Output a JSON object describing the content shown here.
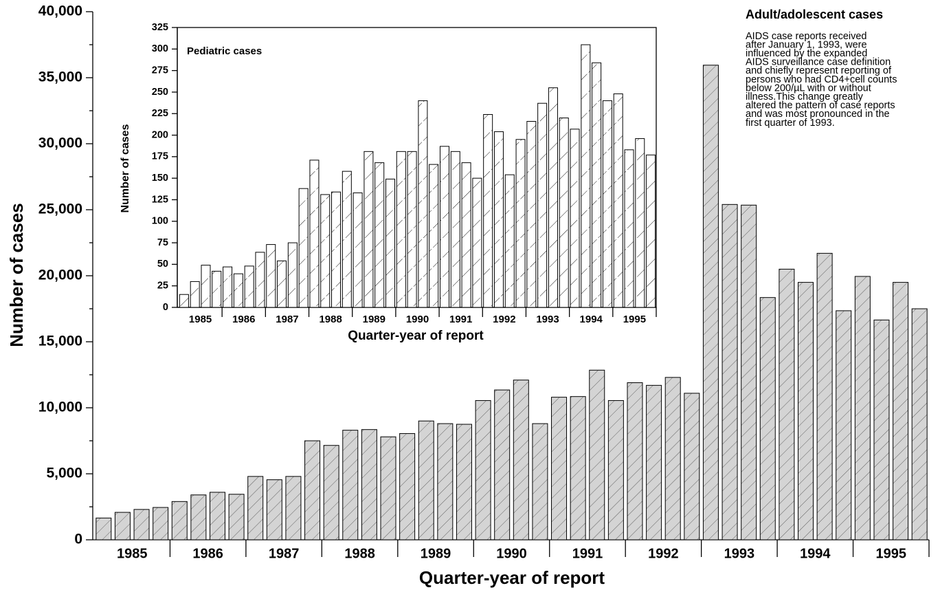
{
  "chart_data": [
    {
      "type": "bar",
      "title": "Adult/adolescent cases",
      "annotation": [
        "AIDS case reports received",
        "after January 1, 1993, were",
        "influenced by the expanded",
        "AIDS surveillance case definition",
        "and chiefly represent reporting of",
        "persons who had CD4+cell counts",
        "below 200/µL with or without",
        "illness.This change greatly",
        "altered the pattern of case reports",
        "and was most pronounced in the",
        "first quarter of 1993."
      ],
      "y_label": "Number of cases",
      "x_label": "Quarter-year of report",
      "groups": [
        "1985",
        "1986",
        "1987",
        "1988",
        "1989",
        "1990",
        "1991",
        "1992",
        "1993",
        "1994",
        "1995"
      ],
      "values": [
        1650,
        2080,
        2300,
        2450,
        2900,
        3400,
        3600,
        3450,
        4800,
        4550,
        4800,
        7500,
        7150,
        8300,
        8350,
        7800,
        8050,
        9000,
        8800,
        8750,
        10550,
        11350,
        12100,
        8800,
        10800,
        10850,
        12850,
        10550,
        11900,
        11700,
        12300,
        11100,
        35950,
        25400,
        25350,
        18350,
        20500,
        19500,
        21700,
        17350,
        19950,
        16650,
        19500,
        17500
      ],
      "color": "#d4d4d4",
      "ylim": [
        0,
        40000
      ],
      "yticks": [
        0,
        {
          "value": 5000,
          "label": "5,000"
        },
        {
          "value": 10000,
          "label": "10,000"
        },
        {
          "value": 15000,
          "label": "15,000"
        },
        {
          "value": 20000,
          "label": "20,000"
        },
        {
          "value": 25000,
          "label": "25,000"
        },
        {
          "value": 30000,
          "label": "30,000"
        },
        {
          "value": 35000,
          "label": "35,000"
        },
        {
          "value": 40000,
          "label": "40,000"
        }
      ],
      "yminorticks": [
        2500,
        7500,
        12500,
        17500,
        22500,
        27500,
        32500,
        37500
      ]
    },
    {
      "type": "bar",
      "title": "Pediatric cases",
      "y_label": "Number of cases",
      "x_label": "Quarter-year of report",
      "groups": [
        "1985",
        "1986",
        "1987",
        "1988",
        "1989",
        "1990",
        "1991",
        "1992",
        "1993",
        "1994",
        "1995"
      ],
      "values": [
        15,
        30,
        49,
        42,
        47,
        39,
        48,
        64,
        73,
        54,
        75,
        138,
        171,
        131,
        134,
        158,
        133,
        181,
        168,
        149,
        181,
        181,
        240,
        166,
        187,
        181,
        168,
        150,
        224,
        204,
        154,
        195,
        216,
        237,
        255,
        220,
        207,
        305,
        284,
        240,
        248,
        183,
        196,
        177
      ],
      "color": "#ffffff",
      "ylim": [
        0,
        325
      ],
      "yticks": [
        0,
        25,
        50,
        75,
        100,
        125,
        150,
        175,
        200,
        225,
        250,
        275,
        300,
        325
      ]
    }
  ]
}
